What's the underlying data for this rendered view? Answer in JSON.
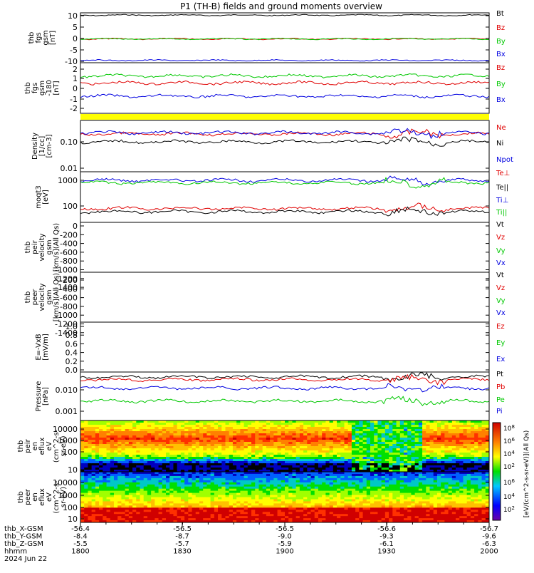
{
  "title": "P1 (TH-B) fields and ground moments overview",
  "colors": {
    "black": "#000000",
    "red": "#e00000",
    "green": "#00c800",
    "blue": "#0000e0",
    "yellow": "#ffff00"
  },
  "chart_data": [
    {
      "type": "line",
      "ylabel_lines": [
        "thb",
        "fgs",
        "gsm",
        "[nT]"
      ],
      "yticks": [
        "10",
        "5",
        "0",
        "-5",
        "-10"
      ],
      "ylim": [
        -10,
        11
      ],
      "legend": [
        {
          "name": "Bt",
          "color": "black"
        },
        {
          "name": "Bz",
          "color": "red"
        },
        {
          "name": "By",
          "color": "green"
        },
        {
          "name": "Bx",
          "color": "blue"
        }
      ],
      "series": [
        {
          "name": "Bt",
          "level": 10
        },
        {
          "name": "Bz",
          "level": 0
        },
        {
          "name": "By",
          "level": 0
        },
        {
          "name": "Bx",
          "level": -9
        }
      ]
    },
    {
      "type": "line",
      "ylabel_lines": [
        "thb",
        "fgs",
        "gsm",
        "-180",
        "[nT]"
      ],
      "yticks": [
        "2",
        "1",
        "0",
        "-1",
        "-2"
      ],
      "ylim": [
        -2.5,
        2.5
      ],
      "legend": [
        {
          "name": "Bz",
          "color": "red"
        },
        {
          "name": "By",
          "color": "green"
        },
        {
          "name": "Bx",
          "color": "blue"
        }
      ],
      "series": [
        {
          "name": "Bz",
          "level": 0.5
        },
        {
          "name": "By",
          "level": 1.2
        },
        {
          "name": "Bx",
          "level": -0.8
        }
      ]
    },
    {
      "type": "line",
      "ylabel_lines": [
        "Density",
        "[1/cc]",
        "[cm-3]"
      ],
      "yticks": [
        "0.10",
        "0.01"
      ],
      "scale": "log",
      "legend": [
        {
          "name": "Ne",
          "color": "red"
        },
        {
          "name": "Ni",
          "color": "black"
        },
        {
          "name": "Npot",
          "color": "blue"
        }
      ],
      "series": [
        {
          "name": "Ne",
          "level": 0.2
        },
        {
          "name": "Ni",
          "level": 0.1
        },
        {
          "name": "Npot",
          "level": 0.22
        }
      ]
    },
    {
      "type": "line",
      "ylabel_lines": [
        "moqt3",
        "[eV]"
      ],
      "yticks": [
        "1000",
        "100"
      ],
      "scale": "log",
      "legend": [
        {
          "name": "Te⊥",
          "color": "red"
        },
        {
          "name": "Te||",
          "color": "black"
        },
        {
          "name": "Ti⊥",
          "color": "blue"
        },
        {
          "name": "Ti||",
          "color": "green"
        }
      ],
      "series": [
        {
          "name": "Te⊥",
          "level": 80
        },
        {
          "name": "Te||",
          "level": 60
        },
        {
          "name": "Ti⊥",
          "level": 1000
        },
        {
          "name": "Ti||",
          "level": 800
        }
      ]
    },
    {
      "type": "line",
      "ylabel_lines": [
        "thb",
        "peir",
        "velocity",
        "gsm",
        "[km/s](All Qs)"
      ],
      "yticks": [
        "0",
        "-200",
        "-400",
        "-600",
        "-800",
        "-1000",
        "-1200",
        "-1400"
      ],
      "ylim": [
        -1400,
        0
      ],
      "legend": [
        {
          "name": "Vt",
          "color": "black"
        },
        {
          "name": "Vz",
          "color": "red"
        },
        {
          "name": "Vy",
          "color": "green"
        },
        {
          "name": "Vx",
          "color": "blue"
        }
      ],
      "series": []
    },
    {
      "type": "line",
      "ylabel_lines": [
        "thb",
        "peer",
        "velocity",
        "gsm",
        "[km/s](All Qs)"
      ],
      "yticks": [
        "-200",
        "-400",
        "-600",
        "-800",
        "-1000",
        "-1200",
        "-1400"
      ],
      "ylim": [
        -1400,
        0
      ],
      "legend": [
        {
          "name": "Vt",
          "color": "black"
        },
        {
          "name": "Vz",
          "color": "red"
        },
        {
          "name": "Vy",
          "color": "green"
        },
        {
          "name": "Vx",
          "color": "blue"
        }
      ],
      "series": []
    },
    {
      "type": "line",
      "ylabel_lines": [
        "E=-VxB",
        "[mV/m]"
      ],
      "yticks": [
        "1.0",
        "0.8",
        "0.6",
        "0.4",
        "0.2",
        "0.0"
      ],
      "ylim": [
        0,
        1
      ],
      "legend": [
        {
          "name": "Ez",
          "color": "red"
        },
        {
          "name": "Ey",
          "color": "green"
        },
        {
          "name": "Ex",
          "color": "blue"
        }
      ],
      "series": []
    },
    {
      "type": "line",
      "ylabel_lines": [
        "Pressure",
        "[nPa]"
      ],
      "yticks": [
        "0.010",
        "0.001"
      ],
      "scale": "log",
      "legend": [
        {
          "name": "Pt",
          "color": "black"
        },
        {
          "name": "Pb",
          "color": "red"
        },
        {
          "name": "Pe",
          "color": "green"
        },
        {
          "name": "Pi",
          "color": "blue"
        }
      ],
      "series": [
        {
          "name": "Pt",
          "level": 0.04
        },
        {
          "name": "Pb",
          "level": 0.03
        },
        {
          "name": "Pe",
          "level": 0.003
        },
        {
          "name": "Pi",
          "level": 0.012
        }
      ]
    },
    {
      "type": "heatmap",
      "ylabel_lines": [
        "thb",
        "peir",
        "en",
        "eflux",
        "eV",
        "(cm^2-s-",
        "sr-eV)"
      ],
      "yticks": [
        "10000",
        "1000",
        "100",
        "10"
      ]
    },
    {
      "type": "heatmap",
      "ylabel_lines": [
        "thb",
        "peer",
        "en",
        "eflux",
        "eV",
        "(cm^2-s-",
        "sr-eV)"
      ],
      "yticks": [
        "10000",
        "1000",
        "100",
        "10"
      ]
    }
  ],
  "colorbar": {
    "label": "[eV/(cm^2-s-sr-eV)](All Qs)",
    "ticks": [
      "10^8",
      "10^6",
      "10^4",
      "10^2"
    ]
  },
  "xaxis": {
    "rows": [
      {
        "name": "thb_X-GSM",
        "values": [
          "-56.4",
          "-56.5",
          "-56.5",
          "-56.6",
          "-56.7"
        ]
      },
      {
        "name": "thb_Y-GSM",
        "values": [
          "-8.4",
          "-8.7",
          "-9.0",
          "-9.3",
          "-9.6"
        ]
      },
      {
        "name": "thb_Z-GSM",
        "values": [
          "-5.5",
          "-5.7",
          "-5.9",
          "-6.1",
          "-6.3"
        ]
      },
      {
        "name": "hhmm",
        "values": [
          "1800",
          "1830",
          "1900",
          "1930",
          "2000"
        ]
      }
    ],
    "date": "2024 Jun 22"
  }
}
